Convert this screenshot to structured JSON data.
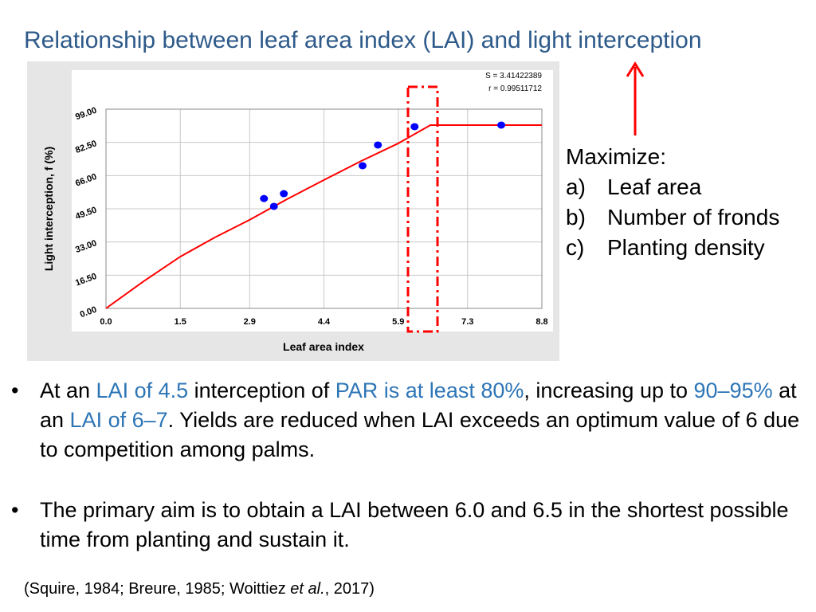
{
  "title": "Relationship between leaf area index (LAI) and light interception",
  "chart_data": {
    "type": "scatter",
    "annotations": [
      "S = 3.41422389",
      "r = 0.99511712"
    ],
    "xlabel": "Leaf area index",
    "ylabel": "Light interception, f (%)",
    "xlim": [
      0,
      8.8
    ],
    "ylim": [
      0,
      99
    ],
    "xticks": [
      {
        "value": 0,
        "label": "0.0"
      },
      1.5,
      2.9,
      4.4,
      5.9,
      7.3,
      8.8
    ],
    "yticks": [
      {
        "value": 0,
        "label": "0.00"
      },
      {
        "value": 16.5,
        "label": "16.50"
      },
      {
        "value": 33,
        "label": "33.00"
      },
      {
        "value": 49.5,
        "label": "49.50"
      },
      {
        "value": 66,
        "label": "66.00"
      },
      {
        "value": 82.5,
        "label": "82.50"
      },
      {
        "value": 99,
        "label": "99.00"
      }
    ],
    "grid": true,
    "series": [
      {
        "type": "scatter",
        "color": "#0000ff",
        "x": [
          3.19,
          3.39,
          3.59,
          5.18,
          5.49,
          6.23,
          7.98
        ],
        "values": [
          54.6,
          50.7,
          57.0,
          70.9,
          81.2,
          90.3,
          91.1
        ]
      },
      {
        "type": "line",
        "color": "#ff0000",
        "x": [
          0,
          0.75,
          1.5,
          2.2,
          2.9,
          3.65,
          4.4,
          5.15,
          5.9,
          6.55,
          8.8
        ],
        "values": [
          0,
          13.3,
          25.7,
          35.3,
          44,
          54.2,
          63.8,
          73.2,
          82,
          91.1,
          91.1
        ]
      }
    ]
  },
  "side": {
    "heading": "Maximize:",
    "items": [
      [
        "a)",
        "Leaf area"
      ],
      [
        "b)",
        "Number of fronds"
      ],
      [
        "c)",
        "Planting density"
      ]
    ]
  },
  "bullets": [
    [
      "At an ",
      "LAI of 4.5",
      " interception of ",
      "PAR is at least 80%",
      ", increasing up to ",
      "90–95%",
      " at an ",
      "LAI of 6–7",
      ". Yields are reduced when LAI exceeds an optimum value of 6 due to competition among palms."
    ],
    [
      "The primary aim is to obtain a LAI between 6.0 and 6.5 in the shortest possible time from planting and sustain it."
    ]
  ],
  "citation": [
    "(Squire, 1984; Breure, 1985; Woittiez ",
    "et al.",
    ", 2017)"
  ]
}
